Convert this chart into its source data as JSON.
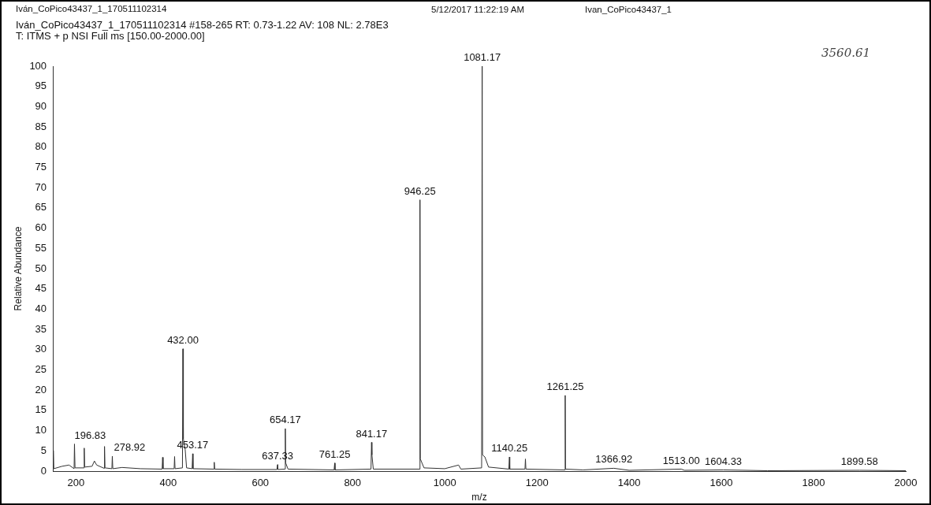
{
  "chart_data": {
    "type": "line",
    "title": "Iván_CoPico43437_1_170511102314",
    "subtitle": "Iván_CoPico43437_1_170511102314 #158-265  RT: 0.73-1.22  AV: 108  NL: 2.78E3",
    "xlabel": "m/z",
    "ylabel": "Relative Abundance",
    "xlim": [
      150,
      2000
    ],
    "xticks": [
      200,
      400,
      600,
      800,
      1000,
      1200,
      1400,
      1600,
      1800,
      2000
    ],
    "ylim": [
      0,
      100
    ],
    "yticks": [
      0,
      5,
      10,
      15,
      20,
      25,
      30,
      35,
      40,
      45,
      50,
      55,
      60,
      65,
      70,
      75,
      80,
      85,
      90,
      95,
      100
    ],
    "grid": false,
    "legend": false,
    "marker": "none",
    "line_style": "solid",
    "series": [
      {
        "color": "#333333",
        "x": [
          150,
          151,
          152,
          170,
          185,
          196,
          196.83,
          198,
          217,
          218,
          219,
          235,
          240,
          245,
          261,
          262,
          263,
          278,
          278.92,
          280,
          300,
          340,
          387,
          388,
          389,
          413,
          414,
          415,
          431,
          432,
          433,
          437,
          440,
          452,
          453.17,
          454,
          499,
          500,
          501,
          560,
          636,
          637.33,
          638,
          653,
          654.17,
          655,
          660,
          760,
          761.25,
          762,
          840,
          841.17,
          842,
          845,
          945,
          946.25,
          947,
          955,
          1000,
          1030,
          1035,
          1080,
          1081.17,
          1082,
          1087,
          1095,
          1139,
          1140.25,
          1141,
          1174,
          1175,
          1176,
          1260,
          1261.25,
          1262,
          1300,
          1366.92,
          1400,
          1513,
          1520,
          1604.33,
          1700,
          1899.58,
          2000
        ],
        "values": [
          0.5,
          5.1,
          0.6,
          1.2,
          1.5,
          0.6,
          6.7,
          0.8,
          0.8,
          5.7,
          1.0,
          1.2,
          2.5,
          1.5,
          0.7,
          6.1,
          0.8,
          0.6,
          3.7,
          0.6,
          0.9,
          0.6,
          0.5,
          3.4,
          0.6,
          0.6,
          3.6,
          0.6,
          0.8,
          30.2,
          8,
          5.3,
          0.8,
          0.6,
          4.3,
          0.6,
          0.5,
          2.2,
          0.5,
          0.4,
          0.4,
          1.6,
          0.4,
          0.5,
          10.5,
          2,
          0.5,
          0.3,
          2,
          0.3,
          0.5,
          7.1,
          4,
          0.5,
          0.5,
          67,
          3,
          0.8,
          0.6,
          1.5,
          0.5,
          0.8,
          100,
          4,
          3.5,
          1,
          0.5,
          3.5,
          0.5,
          0.5,
          3,
          0.5,
          0.3,
          18.7,
          0.5,
          0.3,
          0.7,
          0.2,
          0.5,
          0.2,
          0.3,
          0.1,
          0.2,
          0.1
        ]
      }
    ],
    "annotations": [
      "5/12/2017 11:22:19 AM",
      "Ivan_CoPico43437_1",
      "T: ITMS + p NSI Full ms [150.00-2000.00]",
      "3560.61",
      {
        "text": "196.83",
        "x": 196.83,
        "y": 6.7
      },
      {
        "text": "278.92",
        "x": 278.92,
        "y": 3.7
      },
      {
        "text": "432.00",
        "x": 432,
        "y": 30.2
      },
      {
        "text": "453.17",
        "x": 453.17,
        "y": 4.3
      },
      {
        "text": "637.33",
        "x": 637.33,
        "y": 1.6
      },
      {
        "text": "654.17",
        "x": 654.17,
        "y": 10.5
      },
      {
        "text": "761.25",
        "x": 761.25,
        "y": 2
      },
      {
        "text": "841.17",
        "x": 841.17,
        "y": 7.1
      },
      {
        "text": "946.25",
        "x": 946.25,
        "y": 67
      },
      {
        "text": "1081.17",
        "x": 1081.17,
        "y": 100
      },
      {
        "text": "1140.25",
        "x": 1140.25,
        "y": 3.5
      },
      {
        "text": "1261.25",
        "x": 1261.25,
        "y": 18.7
      },
      {
        "text": "1366.92",
        "x": 1366.92,
        "y": 0.7
      },
      {
        "text": "1513.00",
        "x": 1513,
        "y": 0.5
      },
      {
        "text": "1604.33",
        "x": 1604.33,
        "y": 0.3
      },
      {
        "text": "1899.58",
        "x": 1899.58,
        "y": 0.2
      }
    ]
  }
}
